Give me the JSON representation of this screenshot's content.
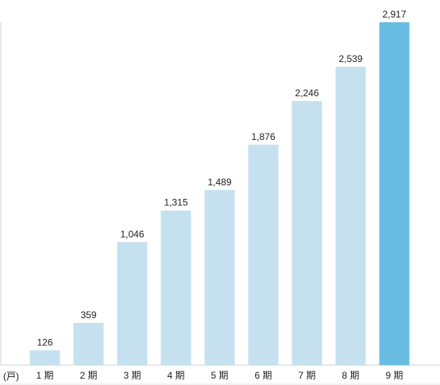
{
  "chart_data": {
    "type": "bar",
    "unit_label": "(戸)",
    "categories": [
      "1 期",
      "2 期",
      "3 期",
      "4 期",
      "5 期",
      "6 期",
      "7 期",
      "8 期",
      "9 期"
    ],
    "values": [
      126,
      359,
      1046,
      1315,
      1489,
      1876,
      2246,
      2539,
      2917
    ],
    "value_labels": [
      "126",
      "359",
      "1,046",
      "1,315",
      "1,489",
      "1,876",
      "2,246",
      "2,539",
      "2,917"
    ],
    "highlight_index": 8,
    "colors": {
      "bar": "#c5e1ef",
      "highlight": "#69bde3",
      "axis": "#d0d0d0"
    },
    "ylim": [
      0,
      2917
    ],
    "grid": false,
    "legend": "none"
  }
}
